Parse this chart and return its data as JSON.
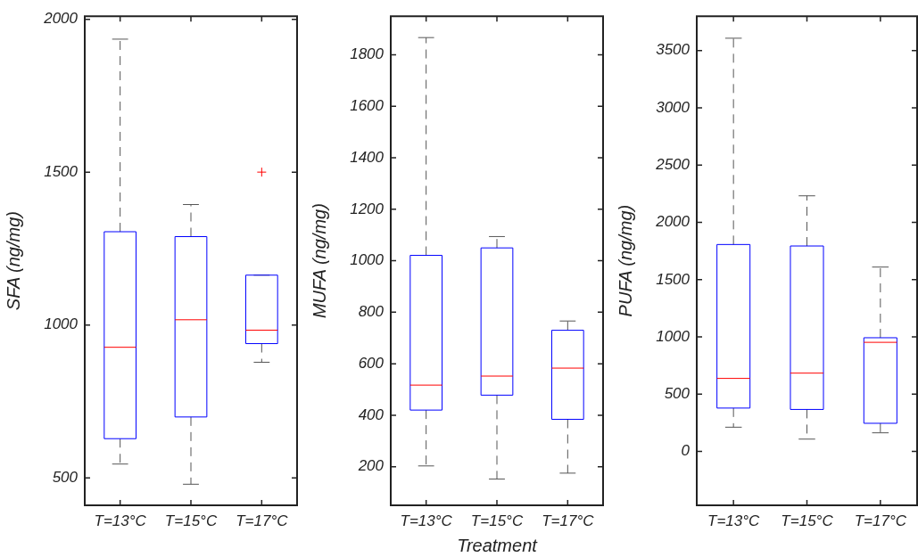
{
  "chart_data": [
    {
      "type": "box",
      "categories": [
        "T=13°C",
        "T=15°C",
        "T=17°C"
      ],
      "ylabel": "SFA (ng/mg)",
      "color": "#0000ff",
      "ylim": [
        410,
        2010
      ],
      "yticks": [
        500,
        1000,
        1500,
        2000
      ],
      "grid": false,
      "boxes": [
        {
          "low": 545,
          "q1": 628,
          "median": 927,
          "q3": 1305,
          "high": 1935
        },
        {
          "low": 479,
          "q1": 699,
          "median": 1017,
          "q3": 1289,
          "high": 1394
        },
        {
          "low": 878,
          "q1": 939,
          "median": 983,
          "q3": 1163,
          "high": 1163,
          "outliers": [
            1500
          ]
        }
      ]
    },
    {
      "type": "box",
      "categories": [
        "T=13°C",
        "T=15°C",
        "T=17°C"
      ],
      "xlabel": "Treatment",
      "ylabel": "MUFA (ng/mg)",
      "color": "#0000ff",
      "ylim": [
        50,
        1950
      ],
      "yticks": [
        200,
        400,
        600,
        800,
        1000,
        1200,
        1400,
        1600,
        1800
      ],
      "grid": false,
      "boxes": [
        {
          "low": 203,
          "q1": 420,
          "median": 517,
          "q3": 1021,
          "high": 1867
        },
        {
          "low": 152,
          "q1": 478,
          "median": 552,
          "q3": 1050,
          "high": 1094
        },
        {
          "low": 175,
          "q1": 384,
          "median": 583,
          "q3": 730,
          "high": 766
        }
      ]
    },
    {
      "type": "box",
      "categories": [
        "T=13°C",
        "T=15°C",
        "T=17°C"
      ],
      "ylabel": "PUFA (ng/mg)",
      "color": "#0000ff",
      "ylim": [
        -470,
        3800
      ],
      "yticks": [
        0,
        500,
        1000,
        1500,
        2000,
        2500,
        3000,
        3500
      ],
      "grid": false,
      "boxes": [
        {
          "low": 212,
          "q1": 379,
          "median": 638,
          "q3": 1807,
          "high": 3608
        },
        {
          "low": 108,
          "q1": 367,
          "median": 684,
          "q3": 1794,
          "high": 2232
        },
        {
          "low": 163,
          "q1": 246,
          "median": 953,
          "q3": 993,
          "high": 1610
        }
      ]
    }
  ]
}
